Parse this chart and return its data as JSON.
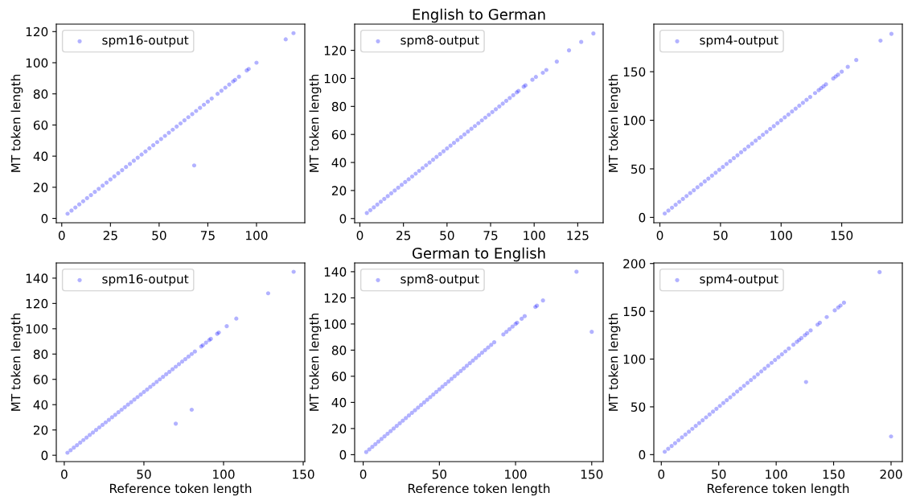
{
  "chart_data": [
    {
      "type": "scatter",
      "ylabel": "MT token length",
      "xlim": [
        -2.8,
        124.8
      ],
      "ylim": [
        -2.8,
        124.8
      ],
      "xticks": [
        0,
        25,
        50,
        75,
        100
      ],
      "yticks": [
        0,
        20,
        40,
        60,
        80,
        100,
        120
      ],
      "legend": "top left",
      "marker": "circle",
      "grid": false,
      "series": [
        {
          "name": "spm16-output",
          "color": "#0000ff",
          "x": [
            3,
            5,
            7,
            9,
            11,
            13,
            15,
            17,
            19,
            21,
            23,
            25,
            27,
            29,
            31,
            33,
            35,
            37,
            39,
            41,
            43,
            45,
            47,
            49,
            51,
            53,
            55,
            57,
            59,
            61,
            63,
            65,
            67,
            69,
            71,
            73,
            75,
            77,
            80,
            82,
            84,
            86,
            88,
            89,
            91,
            95,
            96,
            100,
            115,
            119,
            68
          ],
          "values": [
            3,
            5,
            7,
            9,
            11,
            13,
            15,
            17,
            19,
            21,
            23,
            25,
            27,
            29,
            31,
            33,
            35,
            37,
            39,
            41,
            43,
            45,
            47,
            49,
            51,
            53,
            55,
            57,
            59,
            61,
            63,
            65,
            67,
            69,
            71,
            73,
            75,
            77,
            80,
            82,
            84,
            86,
            88,
            89,
            91,
            95,
            96,
            100,
            115,
            119,
            34
          ]
        }
      ]
    },
    {
      "type": "scatter",
      "title": "English to German",
      "ylabel": "MT token length",
      "xlim": [
        -3,
        139.6
      ],
      "ylim": [
        -3,
        138.7
      ],
      "xticks": [
        0,
        25,
        50,
        75,
        100,
        125
      ],
      "yticks": [
        0,
        20,
        40,
        60,
        80,
        100,
        120
      ],
      "legend": "top left",
      "marker": "circle",
      "grid": false,
      "series": [
        {
          "name": "spm8-output",
          "color": "#0000ff",
          "x": [
            4,
            6,
            8,
            10,
            12,
            14,
            16,
            18,
            20,
            22,
            24,
            26,
            28,
            30,
            32,
            34,
            36,
            38,
            40,
            42,
            44,
            46,
            48,
            50,
            52,
            54,
            56,
            58,
            60,
            62,
            64,
            66,
            68,
            70,
            72,
            74,
            76,
            78,
            80,
            82,
            84,
            86,
            88,
            90,
            91,
            94,
            95,
            99,
            101,
            105,
            107,
            113,
            120,
            127,
            134
          ],
          "values": [
            4,
            6,
            8,
            10,
            12,
            14,
            16,
            18,
            20,
            22,
            24,
            26,
            28,
            30,
            32,
            34,
            36,
            38,
            40,
            42,
            44,
            46,
            48,
            50,
            52,
            54,
            56,
            58,
            60,
            62,
            64,
            66,
            68,
            70,
            72,
            74,
            76,
            78,
            80,
            82,
            84,
            86,
            88,
            90,
            91,
            94,
            95,
            99,
            101,
            104,
            106,
            112,
            120,
            126,
            132
          ]
        }
      ]
    },
    {
      "type": "scatter",
      "ylabel": "MT token length",
      "xlim": [
        -5,
        200
      ],
      "ylim": [
        -5.5,
        199
      ],
      "xticks": [
        0,
        50,
        100,
        150
      ],
      "yticks": [
        0,
        50,
        100,
        150
      ],
      "legend": "top left",
      "marker": "circle",
      "grid": false,
      "series": [
        {
          "name": "spm4-output",
          "color": "#0000ff",
          "x": [
            4,
            7,
            10,
            13,
            16,
            19,
            22,
            25,
            28,
            31,
            34,
            37,
            40,
            43,
            46,
            49,
            52,
            55,
            58,
            61,
            64,
            67,
            70,
            73,
            76,
            79,
            82,
            85,
            88,
            91,
            94,
            97,
            100,
            103,
            106,
            109,
            112,
            115,
            118,
            121,
            124,
            128,
            131,
            133,
            135,
            137,
            143,
            145,
            147,
            150,
            155,
            162,
            182,
            191
          ],
          "values": [
            4,
            7,
            10,
            13,
            16,
            19,
            22,
            25,
            28,
            31,
            34,
            37,
            40,
            43,
            46,
            49,
            52,
            55,
            58,
            61,
            64,
            67,
            70,
            73,
            76,
            79,
            82,
            85,
            88,
            91,
            94,
            97,
            100,
            103,
            106,
            109,
            112,
            115,
            118,
            121,
            124,
            128,
            131,
            133,
            135,
            137,
            143,
            145,
            147,
            150,
            155,
            162,
            182,
            189
          ]
        }
      ]
    },
    {
      "type": "scatter",
      "xlabel": "Reference token length",
      "ylabel": "MT token length",
      "xlim": [
        -5,
        151
      ],
      "ylim": [
        -5,
        152
      ],
      "xticks": [
        0,
        50,
        100,
        150
      ],
      "yticks": [
        0,
        20,
        40,
        60,
        80,
        100,
        120,
        140
      ],
      "legend": "top left",
      "marker": "circle",
      "grid": false,
      "series": [
        {
          "name": "spm16-output",
          "color": "#0000ff",
          "x": [
            2,
            4,
            6,
            8,
            10,
            12,
            14,
            16,
            18,
            20,
            22,
            24,
            26,
            28,
            30,
            32,
            34,
            36,
            38,
            40,
            42,
            44,
            46,
            48,
            50,
            52,
            54,
            56,
            58,
            60,
            62,
            64,
            66,
            68,
            70,
            72,
            74,
            76,
            78,
            80,
            82,
            86,
            87,
            89,
            91,
            92,
            96,
            97,
            102,
            108,
            128,
            144,
            70,
            80
          ],
          "values": [
            2,
            4,
            6,
            8,
            10,
            12,
            14,
            16,
            18,
            20,
            22,
            24,
            26,
            28,
            30,
            32,
            34,
            36,
            38,
            40,
            42,
            44,
            46,
            48,
            50,
            52,
            54,
            56,
            58,
            60,
            62,
            64,
            66,
            68,
            70,
            72,
            74,
            76,
            78,
            80,
            82,
            86,
            87,
            89,
            91,
            92,
            96,
            97,
            102,
            108,
            128,
            145,
            25,
            36
          ]
        }
      ]
    },
    {
      "type": "scatter",
      "title": "German to English",
      "xlabel": "Reference token length",
      "ylabel": "MT token length",
      "xlim": [
        -5.6,
        157.5
      ],
      "ylim": [
        -5.3,
        146.7
      ],
      "xticks": [
        0,
        50,
        100,
        150
      ],
      "yticks": [
        0,
        20,
        40,
        60,
        80,
        100,
        120,
        140
      ],
      "legend": "top left",
      "marker": "circle",
      "grid": false,
      "series": [
        {
          "name": "spm8-output",
          "color": "#0000ff",
          "x": [
            2,
            4,
            6,
            8,
            10,
            12,
            14,
            16,
            18,
            20,
            22,
            24,
            26,
            28,
            30,
            32,
            34,
            36,
            38,
            40,
            42,
            44,
            46,
            48,
            50,
            52,
            54,
            56,
            58,
            60,
            62,
            64,
            66,
            68,
            70,
            72,
            74,
            76,
            78,
            80,
            82,
            84,
            86,
            92,
            94,
            96,
            98,
            100,
            101,
            104,
            106,
            113,
            114,
            118,
            140,
            150
          ],
          "values": [
            2,
            4,
            6,
            8,
            10,
            12,
            14,
            16,
            18,
            20,
            22,
            24,
            26,
            28,
            30,
            32,
            34,
            36,
            38,
            40,
            42,
            44,
            46,
            48,
            50,
            52,
            54,
            56,
            58,
            60,
            62,
            64,
            66,
            68,
            70,
            72,
            74,
            76,
            78,
            80,
            82,
            84,
            86,
            92,
            94,
            96,
            98,
            100,
            101,
            104,
            106,
            113,
            114,
            118,
            140,
            94
          ]
        }
      ]
    },
    {
      "type": "scatter",
      "xlabel": "Reference token length",
      "ylabel": "MT token length",
      "xlim": [
        -6.5,
        209.8
      ],
      "ylim": [
        -7.3,
        200.6
      ],
      "xticks": [
        0,
        50,
        100,
        150,
        200
      ],
      "yticks": [
        0,
        50,
        100,
        150,
        200
      ],
      "legend": "top left",
      "marker": "circle",
      "grid": false,
      "series": [
        {
          "name": "spm4-output",
          "color": "#0000ff",
          "x": [
            3,
            6,
            9,
            12,
            15,
            18,
            21,
            24,
            27,
            30,
            33,
            36,
            39,
            42,
            45,
            48,
            51,
            54,
            57,
            60,
            63,
            66,
            69,
            72,
            75,
            78,
            81,
            84,
            87,
            90,
            93,
            96,
            99,
            102,
            105,
            108,
            111,
            115,
            118,
            120,
            122,
            125,
            127,
            130,
            136,
            138,
            144,
            151,
            154,
            156,
            159,
            190,
            126,
            200
          ],
          "values": [
            3,
            6,
            9,
            12,
            15,
            18,
            21,
            24,
            27,
            30,
            33,
            36,
            39,
            42,
            45,
            48,
            51,
            54,
            57,
            60,
            63,
            66,
            69,
            72,
            75,
            78,
            81,
            84,
            87,
            90,
            93,
            96,
            99,
            102,
            105,
            108,
            111,
            115,
            118,
            120,
            122,
            125,
            127,
            130,
            136,
            138,
            144,
            151,
            154,
            156,
            159,
            191,
            76,
            19
          ]
        }
      ]
    }
  ]
}
